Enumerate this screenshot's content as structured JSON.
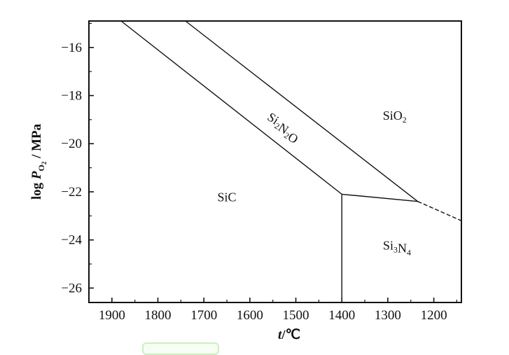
{
  "chart_data": {
    "type": "phase-diagram",
    "x_axis": {
      "label_var": "t",
      "label_unit": "/℃",
      "ticks": [
        1900,
        1800,
        1700,
        1600,
        1500,
        1400,
        1300,
        1200
      ],
      "range": [
        1950,
        1140
      ],
      "reversed": true
    },
    "y_axis": {
      "label_prefix": "log",
      "label_var": "P",
      "label_sub": "O",
      "label_subsub": "2",
      "label_unit": " / MPa",
      "ticks": [
        -16,
        -18,
        -20,
        -22,
        -24,
        -26
      ],
      "range": [
        -26.6,
        -14.9
      ]
    },
    "regions": [
      {
        "name": "SiC",
        "base": "SiC",
        "parts": [
          [
            "SiC",
            ""
          ]
        ],
        "at": [
          1650,
          -22.4
        ]
      },
      {
        "name": "Si2N2O",
        "parts": [
          [
            "Si",
            "2"
          ],
          [
            "N",
            "2"
          ],
          [
            "O",
            ""
          ]
        ],
        "at": [
          1530,
          -19.4
        ],
        "rotate": 33
      },
      {
        "name": "SiO2",
        "parts": [
          [
            "SiO",
            "2"
          ]
        ],
        "at": [
          1285,
          -19.0
        ]
      },
      {
        "name": "Si3N4",
        "parts": [
          [
            "Si",
            "3"
          ],
          [
            "N",
            "4"
          ]
        ],
        "at": [
          1280,
          -24.4
        ]
      }
    ],
    "boundaries": [
      {
        "name": "SiC-Si2N2O",
        "style": "solid",
        "points": [
          [
            1880,
            -14.9
          ],
          [
            1400,
            -22.1
          ]
        ]
      },
      {
        "name": "Si2N2O-SiO2",
        "style": "solid",
        "points": [
          [
            1740,
            -14.9
          ],
          [
            1235,
            -22.4
          ]
        ]
      },
      {
        "name": "Si3N4-upper",
        "style": "solid",
        "points": [
          [
            1400,
            -22.1
          ],
          [
            1235,
            -22.4
          ]
        ]
      },
      {
        "name": "SiO2-Si3N4-extension",
        "style": "dashed",
        "points": [
          [
            1235,
            -22.4
          ],
          [
            1140,
            -23.2
          ]
        ]
      },
      {
        "name": "SiC-Si3N4",
        "style": "solid",
        "points": [
          [
            1400,
            -22.1
          ],
          [
            1400,
            -26.6
          ]
        ]
      }
    ],
    "grid": false,
    "legend": "none"
  }
}
